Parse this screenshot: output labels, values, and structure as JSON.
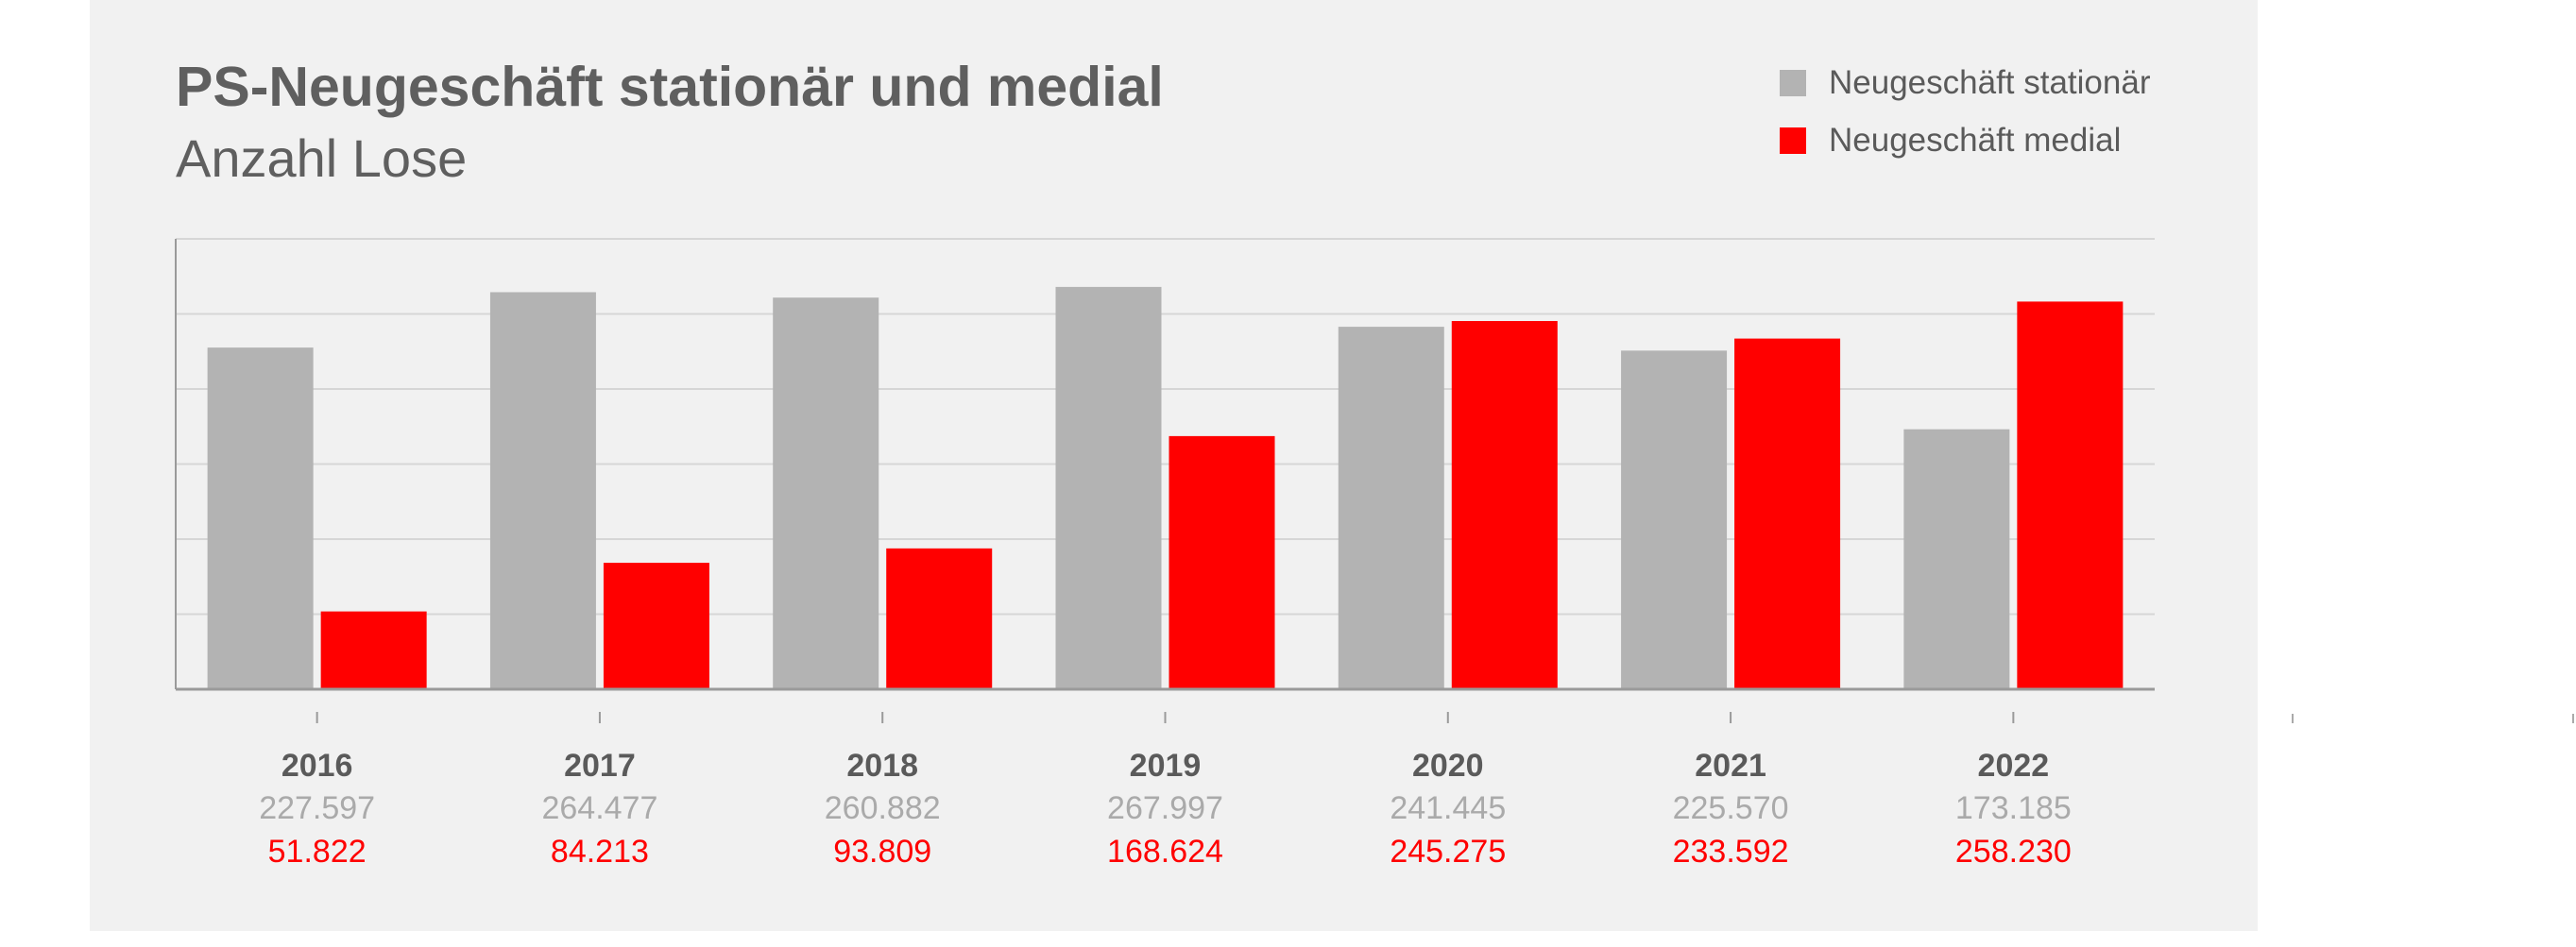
{
  "chart_data": {
    "type": "bar",
    "title": "PS-Neugeschäft stationär und medial",
    "subtitle": "Anzahl Lose",
    "xlabel": "",
    "ylabel": "",
    "ylim": [
      0,
      300000
    ],
    "grid": true,
    "legend_position": "top-right",
    "categories": [
      "2016",
      "2017",
      "2018",
      "2019",
      "2020",
      "2021",
      "2022"
    ],
    "series": [
      {
        "name": "Neugeschäft stationär",
        "color": "#b3b3b3",
        "values": [
          227597,
          264477,
          260882,
          267997,
          241445,
          225570,
          173185
        ],
        "labels": [
          "227.597",
          "264.477",
          "260.882",
          "267.997",
          "241.445",
          "225.570",
          "173.185"
        ]
      },
      {
        "name": "Neugeschäft medial",
        "color": "#ff0000",
        "values": [
          51822,
          84213,
          93809,
          168624,
          245275,
          233592,
          258230
        ],
        "labels": [
          "51.822",
          "84.213",
          "93.809",
          "168.624",
          "245.275",
          "233.592",
          "258.230"
        ]
      }
    ]
  }
}
